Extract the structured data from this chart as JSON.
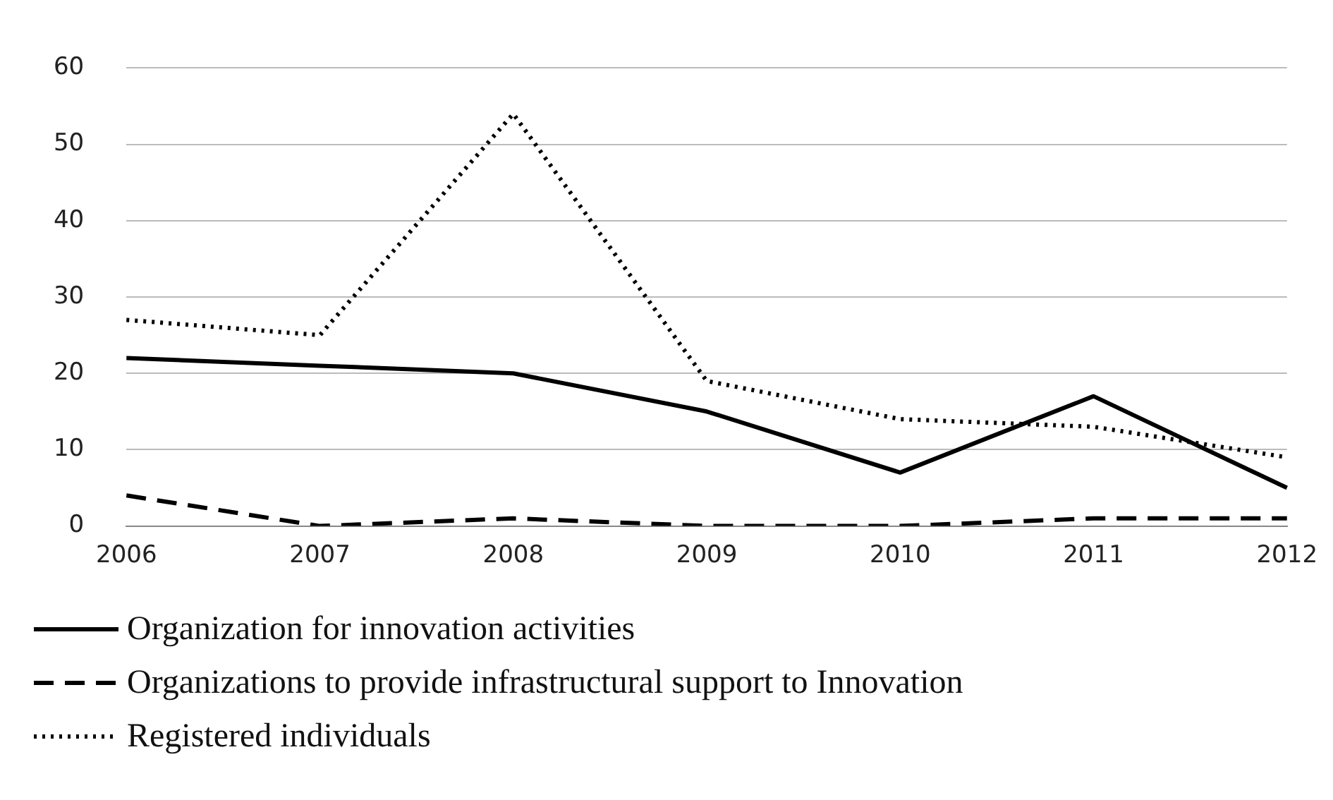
{
  "chart_data": {
    "type": "line",
    "categories": [
      "2006",
      "2007",
      "2008",
      "2009",
      "2010",
      "2011",
      "2012"
    ],
    "series": [
      {
        "name": "Organization for innovation activities",
        "color": "#000000",
        "line_style": "solid",
        "values": [
          22,
          21,
          20,
          15,
          7,
          17,
          5
        ]
      },
      {
        "name": "Organizations to provide infrastructural support to Innovation",
        "color": "#000000",
        "line_style": "dashed",
        "values": [
          4,
          0,
          1,
          0,
          0,
          1,
          1
        ]
      },
      {
        "name": "Registered individuals",
        "color": "#000000",
        "line_style": "dotted",
        "values": [
          27,
          25,
          54,
          19,
          14,
          13,
          9
        ]
      }
    ],
    "ylim": [
      0,
      60
    ],
    "yticks": [
      0,
      10,
      20,
      30,
      40,
      50,
      60
    ],
    "grid": "y",
    "legend": "bottom",
    "marker": "none"
  }
}
